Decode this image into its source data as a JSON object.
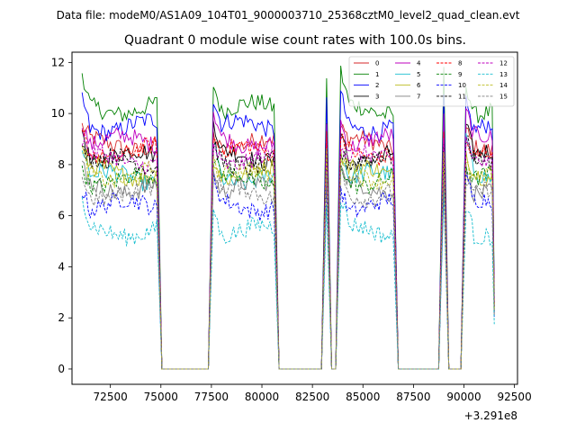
{
  "figure": {
    "suptitle": "Data file: modeM0/AS1A09_104T01_9000003710_25368cztM0_level2_quad_clean.evt"
  },
  "chart_data": {
    "type": "line",
    "title": "Quadrant 0 module wise count rates with 100.0s bins.",
    "xlabel": "",
    "ylabel": "",
    "x_offset_label": "+3.291e8",
    "xlim": [
      70600,
      92650
    ],
    "ylim": [
      -0.6,
      12.4
    ],
    "x_ticks": [
      72500,
      75000,
      77500,
      80000,
      82500,
      85000,
      87500,
      90000,
      92500
    ],
    "x_tick_labels": [
      "72500",
      "75000",
      "77500",
      "80000",
      "82500",
      "85000",
      "87500",
      "90000",
      "92500"
    ],
    "y_ticks": [
      0,
      2,
      4,
      6,
      8,
      10,
      12
    ],
    "y_tick_labels": [
      "0",
      "2",
      "4",
      "6",
      "8",
      "10",
      "12"
    ],
    "legend_location": "upper right",
    "legend_columns": 4,
    "active_segments": [
      {
        "start": 71100,
        "end": 74800
      },
      {
        "start": 77600,
        "end": 80600
      },
      {
        "start": 83200,
        "end": 83200
      },
      {
        "start": 83900,
        "end": 86500
      },
      {
        "start": 89000,
        "end": 89000
      },
      {
        "start": 90100,
        "end": 91500
      }
    ],
    "series": [
      {
        "name": "0",
        "level": 8.8,
        "peak": 9.3,
        "color": "#d62728",
        "dash": false
      },
      {
        "name": "1",
        "level": 10.2,
        "peak": 11.4,
        "color": "#008000",
        "dash": false
      },
      {
        "name": "2",
        "level": 9.5,
        "peak": 10.6,
        "color": "#0000ff",
        "dash": false
      },
      {
        "name": "3",
        "level": 8.3,
        "peak": 9.6,
        "color": "#000000",
        "dash": false
      },
      {
        "name": "4",
        "level": 8.9,
        "peak": 9.9,
        "color": "#bf00bf",
        "dash": false
      },
      {
        "name": "5",
        "level": 7.5,
        "peak": 8.8,
        "color": "#17becf",
        "dash": false
      },
      {
        "name": "6",
        "level": 7.7,
        "peak": 8.4,
        "color": "#bcbd22",
        "dash": false
      },
      {
        "name": "7",
        "level": 7.1,
        "peak": 7.9,
        "color": "#7f7f7f",
        "dash": false
      },
      {
        "name": "8",
        "level": 8.5,
        "peak": 9.1,
        "color": "#ff0000",
        "dash": true
      },
      {
        "name": "9",
        "level": 7.4,
        "peak": 8.1,
        "color": "#008000",
        "dash": true
      },
      {
        "name": "10",
        "level": 6.4,
        "peak": 7.3,
        "color": "#0000ff",
        "dash": true
      },
      {
        "name": "11",
        "level": 8.1,
        "peak": 8.7,
        "color": "#000000",
        "dash": true
      },
      {
        "name": "12",
        "level": 8.2,
        "peak": 8.9,
        "color": "#bf00bf",
        "dash": true
      },
      {
        "name": "13",
        "level": 5.4,
        "peak": 6.6,
        "color": "#17becf",
        "dash": true
      },
      {
        "name": "14",
        "level": 7.6,
        "peak": 8.2,
        "color": "#bcbd22",
        "dash": true
      },
      {
        "name": "15",
        "level": 6.9,
        "peak": 7.6,
        "color": "#7f7f7f",
        "dash": true
      }
    ]
  }
}
